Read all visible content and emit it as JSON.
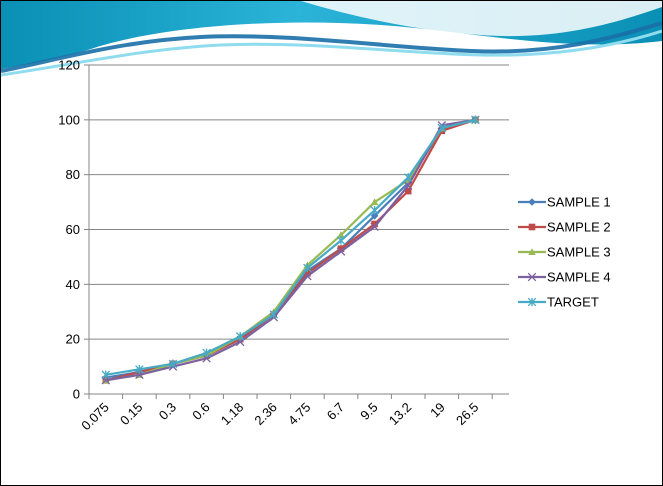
{
  "slide": {
    "banner_colors": {
      "dark": "#0a8fb5",
      "mid": "#2bb3d8",
      "light": "#8fdcef",
      "wave": "#1a6fa8"
    }
  },
  "chart_data": {
    "type": "line",
    "categories": [
      "0.075",
      "0.15",
      "0.3",
      "0.6",
      "1.18",
      "2.36",
      "4.75",
      "6.7",
      "9.5",
      "13.2",
      "19",
      "26.5"
    ],
    "ylim": [
      0,
      120
    ],
    "yticks": [
      "0",
      "20",
      "40",
      "60",
      "80",
      "100",
      "120"
    ],
    "grid": true,
    "legend_position": "right",
    "series": [
      {
        "name": "SAMPLE 1",
        "color": "#4a7ebb",
        "marker": "diamond",
        "values": [
          6,
          8,
          11,
          14,
          20,
          29,
          45,
          53,
          65,
          77,
          97,
          100
        ]
      },
      {
        "name": "SAMPLE 2",
        "color": "#be4b48",
        "marker": "square",
        "values": [
          5,
          8,
          11,
          14,
          20,
          29,
          44,
          53,
          62,
          74,
          96,
          100
        ]
      },
      {
        "name": "SAMPLE 3",
        "color": "#98b954",
        "marker": "triangle",
        "values": [
          5,
          7,
          11,
          14,
          21,
          30,
          47,
          58,
          70,
          78,
          97,
          100
        ]
      },
      {
        "name": "SAMPLE 4",
        "color": "#7d60a0",
        "marker": "x",
        "values": [
          5,
          7,
          10,
          13,
          19,
          28,
          43,
          52,
          61,
          76,
          98,
          100
        ]
      },
      {
        "name": "TARGET",
        "color": "#46aac5",
        "marker": "asterisk",
        "values": [
          7,
          9,
          11,
          15,
          21,
          29,
          46,
          56,
          67,
          79,
          97,
          100
        ]
      }
    ]
  }
}
